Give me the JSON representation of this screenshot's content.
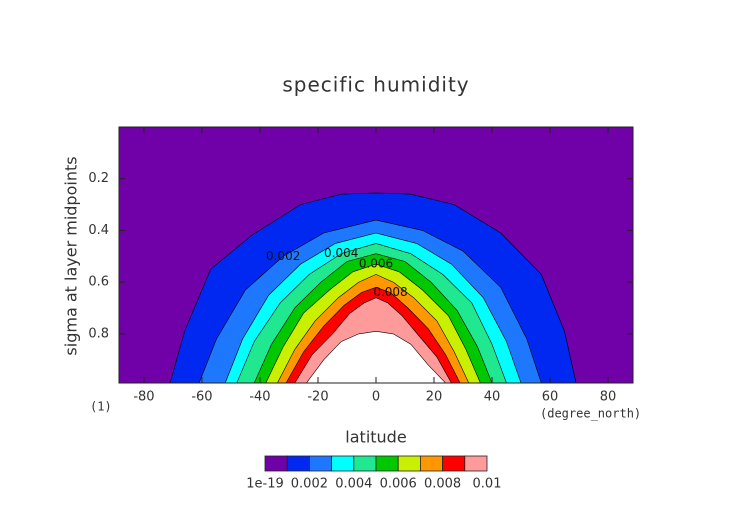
{
  "chart_data": {
    "type": "contour",
    "title": "specific humidity",
    "xlabel": "latitude",
    "ylabel": "sigma at layer midpoints",
    "xunit": "(degree_north)",
    "yunit": "(1)",
    "xlim": [
      -88.6,
      88.6
    ],
    "ylim": [
      0.0,
      0.99
    ],
    "y_inverted": true,
    "xticks": [
      -80,
      -60,
      -40,
      -20,
      0,
      20,
      40,
      60,
      80
    ],
    "yticks": [
      0.2,
      0.4,
      0.6,
      0.8
    ],
    "levels": [
      1e-19,
      0.001,
      0.002,
      0.003,
      0.004,
      0.005,
      0.006,
      0.007,
      0.008,
      0.009,
      0.01
    ],
    "colors": [
      "#7000a8",
      "#0028f0",
      "#1e78ff",
      "#00ffff",
      "#20e890",
      "#00c800",
      "#c8f000",
      "#ff9800",
      "#ff0000",
      "#ff9a9a"
    ],
    "above_color": "#ffffff",
    "cbar_ticks": [
      1e-19,
      0.002,
      0.004,
      0.006,
      0.008,
      0.01
    ],
    "contours": [
      {
        "level": 0.001,
        "lat": [
          -71,
          -66,
          -57,
          -43,
          -26,
          -12,
          0,
          12,
          27,
          43,
          57,
          65,
          69
        ],
        "sigma": [
          0.99,
          0.79,
          0.55,
          0.42,
          0.3,
          0.26,
          0.255,
          0.26,
          0.3,
          0.41,
          0.57,
          0.79,
          0.99
        ]
      },
      {
        "level": 0.002,
        "lat": [
          -61,
          -55,
          -45,
          -32,
          -18,
          0,
          16,
          30,
          43,
          52,
          57
        ],
        "sigma": [
          0.99,
          0.82,
          0.63,
          0.5,
          0.41,
          0.36,
          0.4,
          0.48,
          0.62,
          0.82,
          0.99
        ]
      },
      {
        "level": 0.003,
        "lat": [
          -52,
          -46,
          -37,
          -26,
          -14,
          0,
          14,
          26,
          37,
          45,
          50
        ],
        "sigma": [
          0.99,
          0.82,
          0.65,
          0.53,
          0.45,
          0.41,
          0.45,
          0.53,
          0.66,
          0.83,
          0.99
        ]
      },
      {
        "level": 0.004,
        "lat": [
          -48,
          -42,
          -33,
          -23,
          -12,
          0,
          12,
          23,
          33,
          40,
          45
        ],
        "sigma": [
          0.99,
          0.83,
          0.68,
          0.57,
          0.49,
          0.45,
          0.49,
          0.57,
          0.68,
          0.84,
          0.99
        ]
      },
      {
        "level": 0.005,
        "lat": [
          -42,
          -36,
          -28,
          -19,
          -10,
          0,
          10,
          19,
          28,
          35,
          40
        ],
        "sigma": [
          0.99,
          0.84,
          0.7,
          0.6,
          0.52,
          0.49,
          0.52,
          0.6,
          0.71,
          0.85,
          0.99
        ]
      },
      {
        "level": 0.006,
        "lat": [
          -38,
          -32,
          -25,
          -16,
          -8,
          0,
          8,
          16,
          25,
          31,
          36
        ],
        "sigma": [
          0.99,
          0.85,
          0.72,
          0.63,
          0.56,
          0.53,
          0.56,
          0.63,
          0.73,
          0.86,
          0.99
        ]
      },
      {
        "level": 0.007,
        "lat": [
          -34,
          -28,
          -21,
          -13,
          -6,
          0,
          6,
          13,
          21,
          27,
          32
        ],
        "sigma": [
          0.99,
          0.86,
          0.75,
          0.66,
          0.6,
          0.57,
          0.6,
          0.66,
          0.75,
          0.87,
          0.99
        ]
      },
      {
        "level": 0.008,
        "lat": [
          -31,
          -25,
          -18,
          -11,
          -5,
          0,
          5,
          11,
          18,
          24,
          29
        ],
        "sigma": [
          0.99,
          0.87,
          0.77,
          0.69,
          0.64,
          0.62,
          0.64,
          0.7,
          0.78,
          0.88,
          0.99
        ]
      },
      {
        "level": 0.009,
        "lat": [
          -28,
          -22,
          -15,
          -9,
          -4,
          0,
          4,
          9,
          15,
          21,
          26
        ],
        "sigma": [
          0.99,
          0.88,
          0.8,
          0.72,
          0.68,
          0.66,
          0.68,
          0.73,
          0.81,
          0.89,
          0.99
        ]
      },
      {
        "level": 0.01,
        "lat": [
          -24,
          -18,
          -12,
          -6,
          0,
          6,
          12,
          18,
          24
        ],
        "sigma": [
          0.99,
          0.9,
          0.83,
          0.8,
          0.79,
          0.8,
          0.84,
          0.92,
          0.99
        ]
      }
    ]
  }
}
